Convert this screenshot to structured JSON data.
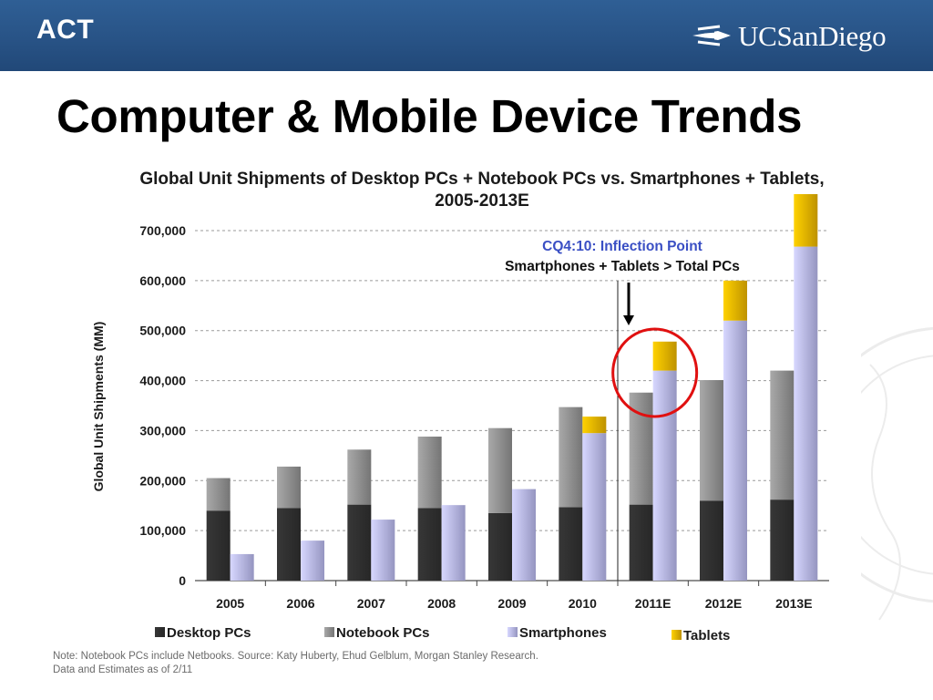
{
  "header": {
    "label": "ACT",
    "logo_text": "UCSanDiego"
  },
  "slide_title": "Computer & Mobile Device Trends",
  "chart_data": {
    "type": "bar",
    "stacked_groups": true,
    "title_line1": "Global Unit Shipments of Desktop PCs + Notebook PCs vs. Smartphones + Tablets,",
    "title_line2": "2005-2013E",
    "ylabel": "Global Unit Shipments (MM)",
    "xlabel": "",
    "ylim": [
      0,
      700000
    ],
    "yticks": [
      0,
      100000,
      200000,
      300000,
      400000,
      500000,
      600000,
      700000
    ],
    "ytick_labels": [
      "0",
      "100,000",
      "200,000",
      "300,000",
      "400,000",
      "500,000",
      "600,000",
      "700,000"
    ],
    "grid": "horizontal dashed",
    "categories": [
      "2005",
      "2006",
      "2007",
      "2008",
      "2009",
      "2010",
      "2011E",
      "2012E",
      "2013E"
    ],
    "series": [
      {
        "name": "Desktop PCs",
        "stack": "PCs",
        "color": "#2f2f2f",
        "values": [
          140000,
          145000,
          152000,
          145000,
          135000,
          147000,
          152000,
          160000,
          162000
        ]
      },
      {
        "name": "Notebook PCs",
        "stack": "PCs",
        "color": "#8f8f8f",
        "values": [
          65000,
          83000,
          110000,
          143000,
          170000,
          200000,
          224000,
          241000,
          258000
        ]
      },
      {
        "name": "Smartphones",
        "stack": "Mobile",
        "color": "#b6b6ea",
        "values": [
          53000,
          80000,
          122000,
          151000,
          183000,
          295000,
          420000,
          520000,
          668000
        ]
      },
      {
        "name": "Tablets",
        "stack": "Mobile",
        "color": "#e8b200",
        "values": [
          0,
          0,
          0,
          0,
          0,
          33000,
          58000,
          80000,
          105000
        ]
      }
    ],
    "legend_position": "bottom",
    "annotation": {
      "line1": "CQ4:10: Inflection Point",
      "line2": "Smartphones + Tablets > Total PCs",
      "marker_after_category": "2010",
      "highlighted_category": "2011E"
    }
  },
  "note": {
    "line1": "Note: Notebook PCs include Netbooks. Source: Katy Huberty, Ehud Gelblum, Morgan Stanley Research.",
    "line2": "Data and Estimates as of 2/11"
  },
  "colors": {
    "header_blue": "#285386",
    "annotation_blue": "#3a4fc4",
    "highlight_circle": "#e01010"
  }
}
